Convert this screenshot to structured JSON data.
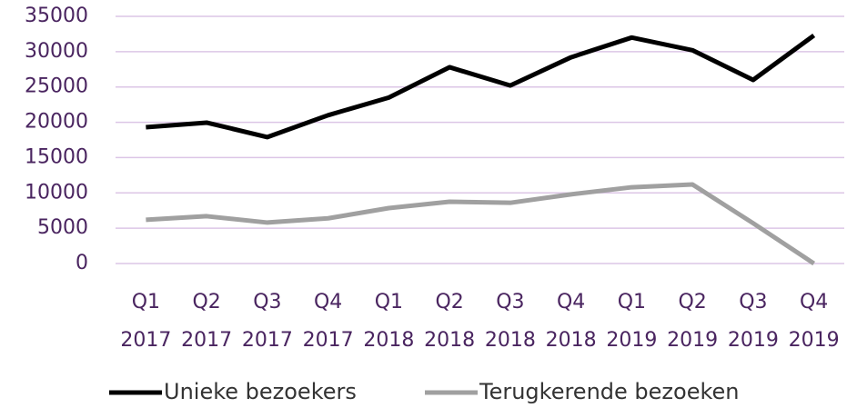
{
  "chart_data": {
    "type": "line",
    "categories": [
      "Q1 2017",
      "Q2 2017",
      "Q3 2017",
      "Q4 2017",
      "Q1 2018",
      "Q2 2018",
      "Q3 2018",
      "Q4 2018",
      "Q1 2019",
      "Q2 2019",
      "Q3 2019",
      "Q4 2019"
    ],
    "series": [
      {
        "name": "Unieke bezoekers",
        "color": "#000000",
        "values": [
          19300,
          19950,
          17900,
          21000,
          23500,
          27800,
          25200,
          29200,
          32000,
          30200,
          26000,
          32300
        ]
      },
      {
        "name": "Terugkerende bezoeken",
        "color": "#a0a0a0",
        "values": [
          6200,
          6700,
          5800,
          6400,
          7850,
          8750,
          8600,
          9800,
          10800,
          11200,
          5700,
          0
        ]
      }
    ],
    "ylim": [
      0,
      35000
    ],
    "yticks": [
      0,
      5000,
      10000,
      15000,
      20000,
      25000,
      30000,
      35000
    ],
    "grid": true,
    "grid_color": "#dcc6e6",
    "legend": "bottom"
  }
}
